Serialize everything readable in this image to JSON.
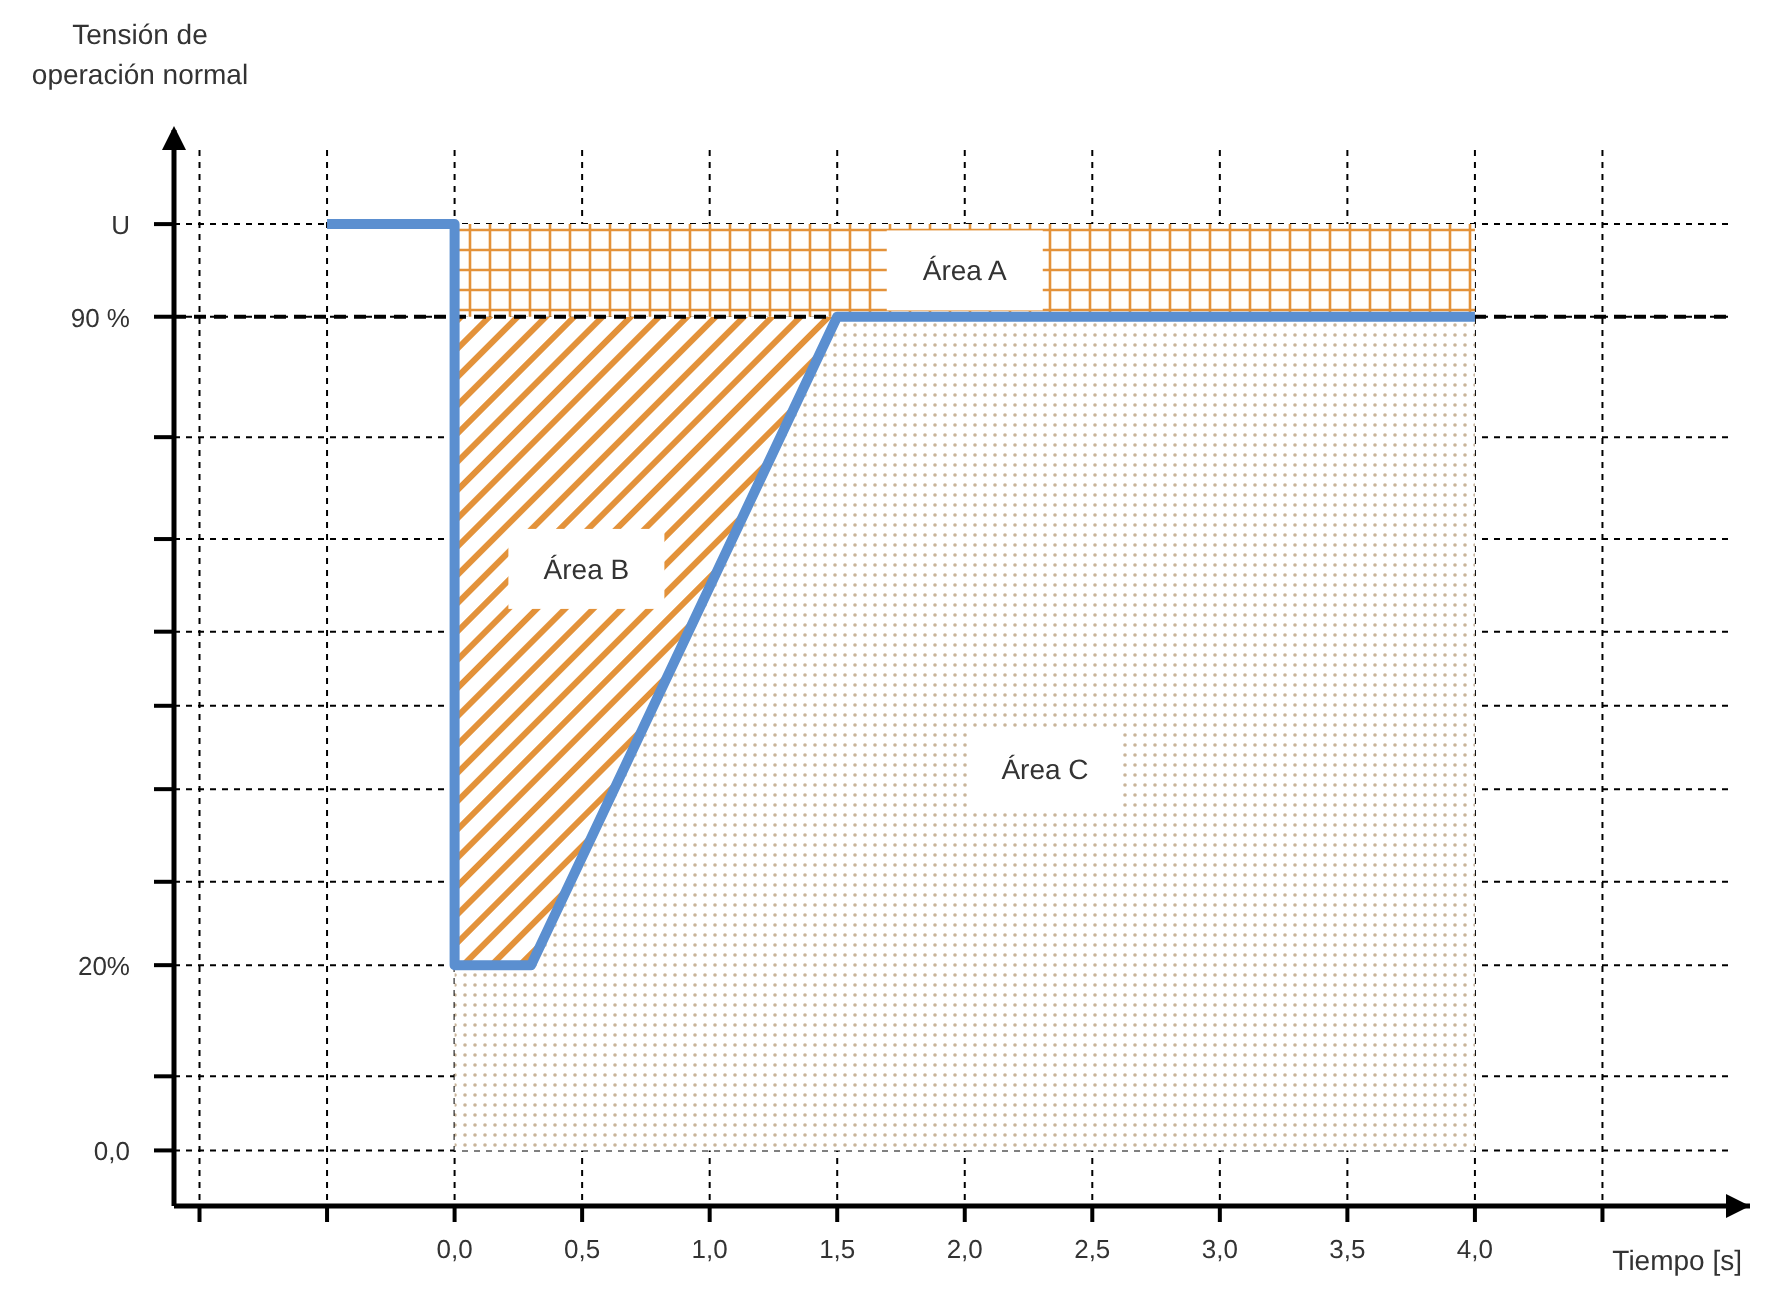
{
  "chart_data": {
    "type": "area",
    "stacked": true,
    "xlabel": "Tiempo [s]",
    "ylabel": "Tensión de operación normal",
    "xlim": [
      -1.1,
      5.0
    ],
    "ylim": [
      -6,
      108
    ],
    "xticks": [
      {
        "value": -1.0,
        "label": null
      },
      {
        "value": -0.5,
        "label": null
      },
      {
        "value": 0,
        "label": "0,0"
      },
      {
        "value": 0.5,
        "label": "0,5"
      },
      {
        "value": 1.0,
        "label": "1,0"
      },
      {
        "value": 1.5,
        "label": "1,5"
      },
      {
        "value": 2.0,
        "label": "2,0"
      },
      {
        "value": 2.5,
        "label": "2,5"
      },
      {
        "value": 3.0,
        "label": "3,0"
      },
      {
        "value": 3.5,
        "label": "3,5"
      },
      {
        "value": 4.0,
        "label": "4,0"
      },
      {
        "value": 4.5,
        "label": null
      }
    ],
    "yticks": [
      {
        "value": 0,
        "label": "0,0"
      },
      {
        "value": 8,
        "label": null
      },
      {
        "value": 20,
        "label": "20%"
      },
      {
        "value": 29,
        "label": null
      },
      {
        "value": 39,
        "label": null
      },
      {
        "value": 48,
        "label": null
      },
      {
        "value": 56,
        "label": null
      },
      {
        "value": 66,
        "label": null
      },
      {
        "value": 77,
        "label": null
      },
      {
        "value": 90,
        "label": "90 %"
      },
      {
        "value": 100,
        "label": "U"
      }
    ],
    "grid": true,
    "line_style": "solid",
    "marker": "none",
    "ref_lines": [
      {
        "axis": "y",
        "value": 90,
        "color": "#000000",
        "line_style": "dashed"
      }
    ],
    "series": [
      {
        "name": "Área C",
        "color": "#c8b49a",
        "x": [
          0,
          0.3,
          1.5,
          4
        ],
        "values": [
          20,
          20,
          90,
          90
        ]
      },
      {
        "name": "Área B",
        "color": "#e3923a",
        "x": [
          0,
          0.3,
          1.5,
          4
        ],
        "values": [
          70,
          70,
          0,
          0
        ]
      },
      {
        "name": "Área A",
        "color": "#e3923a",
        "x": [
          0,
          0.3,
          1.5,
          4
        ],
        "values": [
          10,
          10,
          10,
          10
        ]
      },
      {
        "type": "line",
        "color": "#5b8fd0",
        "x": [
          -0.5,
          0,
          0,
          0.3,
          1.5,
          4
        ],
        "values": [
          100,
          100,
          20,
          20,
          90,
          90
        ]
      }
    ]
  }
}
